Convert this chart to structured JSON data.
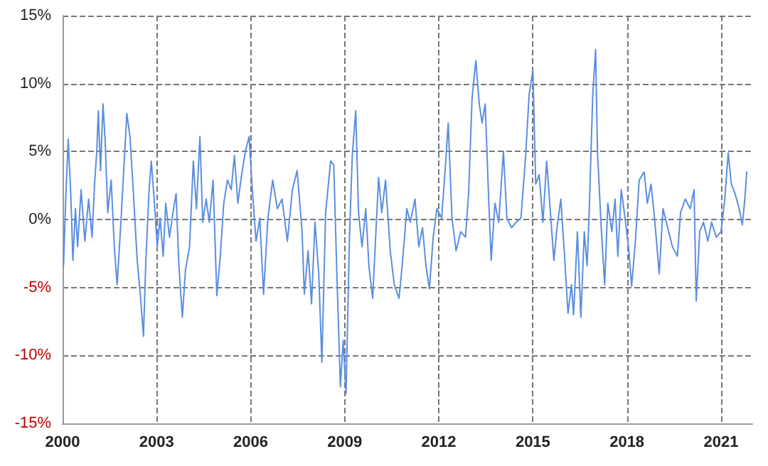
{
  "chart_data": {
    "type": "line",
    "grid": true,
    "marker": "none",
    "line_style": "solid",
    "xlim": [
      2000,
      2022
    ],
    "xticks": [
      2000,
      2003,
      2006,
      2009,
      2012,
      2015,
      2018,
      2021
    ],
    "ylim": [
      -15,
      15
    ],
    "yticks": [
      {
        "value": -15,
        "label": "-15%"
      },
      {
        "value": -10,
        "label": "-10%"
      },
      {
        "value": -5,
        "label": "-5%"
      },
      {
        "value": 0,
        "label": "0%"
      },
      {
        "value": 5,
        "label": "5%"
      },
      {
        "value": 10,
        "label": "10%"
      },
      {
        "value": 15,
        "label": "15%"
      }
    ],
    "series": [
      {
        "color": "#5b8ee0",
        "x": [
          2000.03,
          2000.1,
          2000.18,
          2000.26,
          2000.33,
          2000.41,
          2000.48,
          2000.59,
          2000.71,
          2000.83,
          2000.94,
          2001.02,
          2001.09,
          2001.14,
          2001.21,
          2001.29,
          2001.36,
          2001.44,
          2001.55,
          2001.65,
          2001.74,
          2001.85,
          2001.95,
          2002.05,
          2002.15,
          2002.26,
          2002.38,
          2002.48,
          2002.58,
          2002.65,
          2002.76,
          2002.83,
          2002.92,
          2003.02,
          2003.11,
          2003.21,
          2003.29,
          2003.41,
          2003.52,
          2003.62,
          2003.71,
          2003.82,
          2003.92,
          2004.05,
          2004.17,
          2004.27,
          2004.38,
          2004.47,
          2004.58,
          2004.68,
          2004.8,
          2004.92,
          2005.03,
          2005.14,
          2005.26,
          2005.38,
          2005.48,
          2005.59,
          2005.71,
          2005.83,
          2005.95,
          2006.05,
          2006.17,
          2006.29,
          2006.41,
          2006.55,
          2006.7,
          2006.85,
          2007.0,
          2007.17,
          2007.33,
          2007.48,
          2007.64,
          2007.71,
          2007.83,
          2007.94,
          2008.05,
          2008.17,
          2008.27,
          2008.39,
          2008.55,
          2008.65,
          2008.74,
          2008.86,
          2008.95,
          2009.04,
          2009.15,
          2009.24,
          2009.35,
          2009.44,
          2009.55,
          2009.67,
          2009.77,
          2009.89,
          2010.0,
          2010.08,
          2010.18,
          2010.3,
          2010.45,
          2010.58,
          2010.73,
          2010.83,
          2010.98,
          2011.09,
          2011.24,
          2011.36,
          2011.48,
          2011.59,
          2011.7,
          2011.82,
          2011.94,
          2012.09,
          2012.2,
          2012.3,
          2012.42,
          2012.55,
          2012.7,
          2012.85,
          2012.95,
          2013.06,
          2013.18,
          2013.29,
          2013.38,
          2013.48,
          2013.59,
          2013.67,
          2013.79,
          2013.91,
          2014.06,
          2014.17,
          2014.32,
          2014.47,
          2014.62,
          2014.77,
          2014.88,
          2015.0,
          2015.09,
          2015.2,
          2015.32,
          2015.44,
          2015.55,
          2015.67,
          2015.77,
          2015.89,
          2016.0,
          2016.12,
          2016.23,
          2016.3,
          2016.42,
          2016.53,
          2016.64,
          2016.73,
          2016.8,
          2016.91,
          2017.0,
          2017.06,
          2017.18,
          2017.29,
          2017.39,
          2017.52,
          2017.62,
          2017.71,
          2017.82,
          2017.94,
          2018.05,
          2018.15,
          2018.27,
          2018.39,
          2018.55,
          2018.65,
          2018.77,
          2018.88,
          2019.03,
          2019.15,
          2019.3,
          2019.45,
          2019.61,
          2019.71,
          2019.86,
          2020.02,
          2020.14,
          2020.21,
          2020.32,
          2020.44,
          2020.58,
          2020.7,
          2020.85,
          2021.0,
          2021.12,
          2021.23,
          2021.33,
          2021.45,
          2021.58,
          2021.68,
          2021.76,
          2021.82
        ],
        "values": [
          -3.4,
          1.5,
          5.9,
          1.9,
          -3.0,
          0.8,
          -2.0,
          2.2,
          -1.6,
          1.5,
          -1.3,
          2.6,
          5.0,
          8.0,
          3.6,
          8.5,
          5.7,
          0.5,
          2.9,
          -2.0,
          -4.8,
          -0.6,
          3.6,
          7.8,
          6.1,
          1.9,
          -3.0,
          -5.5,
          -8.6,
          -3.4,
          2.2,
          4.3,
          1.5,
          -2.0,
          0.1,
          -2.7,
          1.2,
          -1.3,
          0.5,
          1.9,
          -3.4,
          -7.2,
          -3.7,
          -2.0,
          4.3,
          0.8,
          6.1,
          -0.2,
          1.5,
          -0.2,
          2.9,
          -5.6,
          -2.7,
          1.2,
          2.9,
          2.2,
          4.7,
          1.2,
          3.3,
          5.0,
          6.1,
          2.2,
          -1.6,
          0.1,
          -5.5,
          0.1,
          2.9,
          0.8,
          1.5,
          -1.6,
          2.2,
          3.6,
          -0.9,
          -5.5,
          -2.3,
          -6.2,
          -0.2,
          -4.0,
          -10.5,
          0.5,
          4.3,
          4.0,
          -3.4,
          -12.3,
          -8.9,
          -12.8,
          -1.3,
          4.7,
          8.0,
          0.5,
          -2.0,
          0.8,
          -3.4,
          -5.8,
          -0.6,
          3.1,
          0.5,
          2.9,
          -2.3,
          -4.8,
          -5.8,
          -3.4,
          0.8,
          -0.2,
          1.5,
          -2.0,
          -0.6,
          -3.4,
          -5.1,
          -1.3,
          0.8,
          0.1,
          3.6,
          7.1,
          0.1,
          -2.3,
          -0.9,
          -1.3,
          1.9,
          8.9,
          11.7,
          8.5,
          7.1,
          8.5,
          1.5,
          -3.0,
          1.2,
          -0.2,
          5.0,
          0.1,
          -0.6,
          -0.2,
          0.1,
          4.7,
          9.2,
          11.0,
          2.6,
          3.3,
          -0.2,
          4.3,
          0.8,
          -3.0,
          -0.6,
          1.5,
          -2.3,
          -6.9,
          -4.8,
          -7.0,
          -0.9,
          -7.2,
          -0.9,
          -3.4,
          0.8,
          9.2,
          12.5,
          5.0,
          -0.6,
          -4.8,
          1.2,
          -0.9,
          1.5,
          -2.7,
          2.2,
          0.1,
          -2.0,
          -4.9,
          -1.6,
          2.9,
          3.5,
          1.2,
          2.6,
          0.1,
          -4.0,
          0.8,
          -0.6,
          -2.0,
          -2.7,
          0.5,
          1.5,
          0.8,
          2.2,
          -6.0,
          -0.9,
          -0.2,
          -1.6,
          -0.2,
          -1.3,
          -0.9,
          1.5,
          4.9,
          2.6,
          1.9,
          0.8,
          -0.4,
          1.5,
          3.5
        ]
      }
    ]
  }
}
